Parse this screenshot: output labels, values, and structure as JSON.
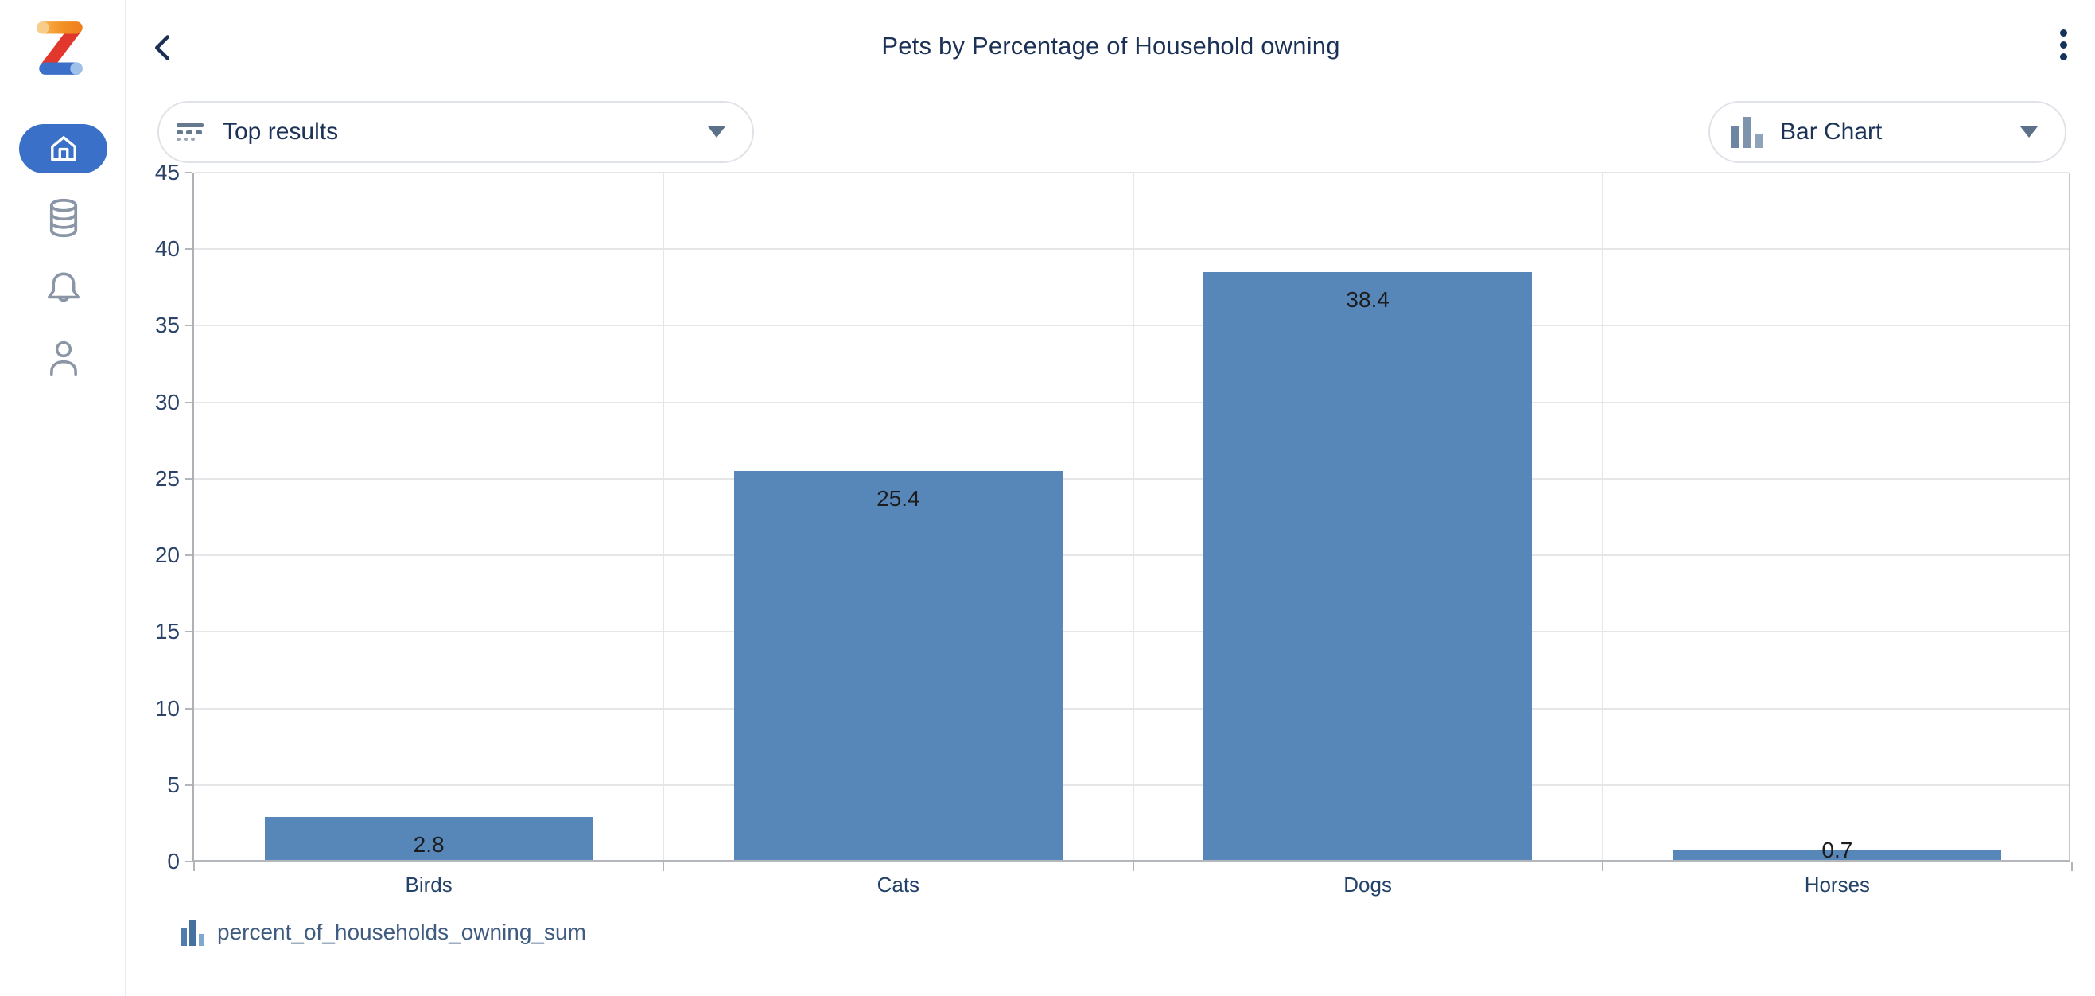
{
  "app_name": "Zoho Analytics",
  "sidebar": {
    "items": [
      {
        "id": "home",
        "icon": "home-icon",
        "active": true
      },
      {
        "id": "data",
        "icon": "database-icon",
        "active": false
      },
      {
        "id": "notifications",
        "icon": "bell-icon",
        "active": false
      },
      {
        "id": "profile",
        "icon": "user-icon",
        "active": false
      }
    ]
  },
  "header": {
    "back_icon": "chevron-left-icon",
    "menu_icon": "kebab-menu-icon"
  },
  "controls": {
    "top_results_label": "Top results",
    "chart_type_label": "Bar Chart"
  },
  "chart_data": {
    "type": "bar",
    "title": "Pets by Percentage of Household owning",
    "categories": [
      "Birds",
      "Cats",
      "Dogs",
      "Horses"
    ],
    "values": [
      2.8,
      25.4,
      38.4,
      0.7
    ],
    "series": [
      {
        "name": "percent_of_households_owning_sum",
        "values": [
          2.8,
          25.4,
          38.4,
          0.7
        ]
      }
    ],
    "series_name": "percent_of_households_owning_sum",
    "xlabel": "",
    "ylabel": "",
    "ylim": [
      0,
      45
    ],
    "yticks": [
      0,
      5,
      10,
      15,
      20,
      25,
      30,
      35,
      40,
      45
    ],
    "grid": true,
    "legend_position": "bottom",
    "bar_color": "#5787b8",
    "value_label_color": "#1c1c1e"
  },
  "colors": {
    "accent_blue": "#3b70c9",
    "navy_text": "#1c3357",
    "bar_fill": "#5787b8",
    "logo_orange": "#f39222",
    "logo_red": "#e2372c",
    "logo_blue": "#3c70c8"
  }
}
